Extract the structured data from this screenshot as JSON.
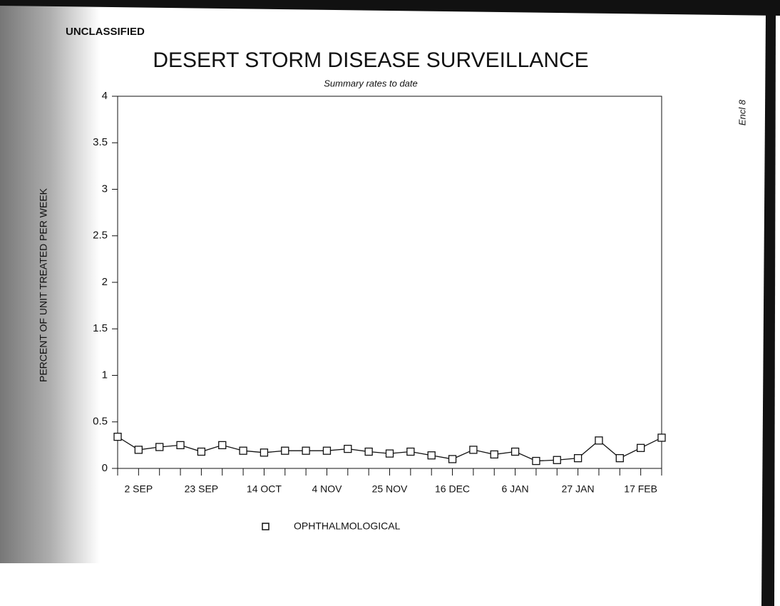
{
  "chart_data": {
    "type": "line",
    "header": "UNCLASSIFIED",
    "title": "DESERT STORM DISEASE SURVEILLANCE",
    "subtitle": "Summary rates to date",
    "y_label": "PERCENT OF UNIT TREATED PER WEEK",
    "annotation": "Encl 8",
    "categories": [
      null,
      "2 SEP",
      null,
      null,
      "23 SEP",
      null,
      null,
      "14 OCT",
      null,
      null,
      "4 NOV",
      null,
      null,
      "25 NOV",
      null,
      null,
      "16 DEC",
      null,
      null,
      "6 JAN",
      null,
      null,
      "27 JAN",
      null,
      null,
      "17 FEB",
      null
    ],
    "series": [
      {
        "name": "OPHTHALMOLOGICAL",
        "color": "#111111",
        "values": [
          0.34,
          0.2,
          0.23,
          0.25,
          0.18,
          0.25,
          0.19,
          0.17,
          0.19,
          0.19,
          0.19,
          0.21,
          0.18,
          0.16,
          0.18,
          0.14,
          0.1,
          0.2,
          0.15,
          0.18,
          0.08,
          0.09,
          0.11,
          0.3,
          0.11,
          0.22,
          0.33
        ]
      }
    ],
    "ylim": [
      0,
      4
    ],
    "yticks": [
      0,
      0.5,
      1,
      1.5,
      2,
      2.5,
      3,
      3.5,
      4
    ],
    "grid": false
  }
}
